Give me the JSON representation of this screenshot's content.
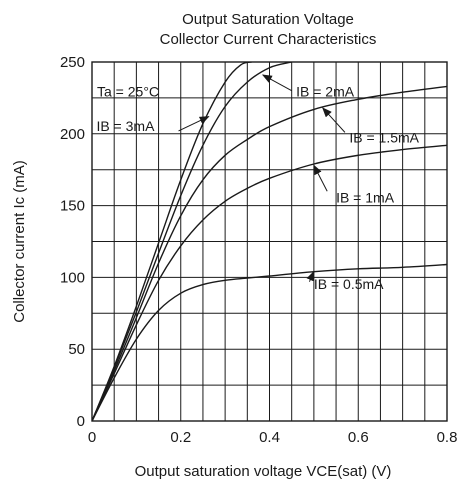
{
  "chart_data": {
    "type": "line",
    "title": [
      "Output Saturation Voltage",
      "Collector Current Characteristics"
    ],
    "xlabel": "Output saturation voltage  VCE(sat) (V)",
    "ylabel": "Collector current  Ic (mA)",
    "xlim": [
      0,
      0.8
    ],
    "ylim": [
      0,
      250
    ],
    "x_ticks": [
      0,
      0.2,
      0.4,
      0.6,
      0.8
    ],
    "x_tick_labels": [
      "0",
      "0.2",
      "0.4",
      "0.6",
      "0.8"
    ],
    "y_ticks": [
      0,
      50,
      100,
      150,
      200,
      250
    ],
    "y_tick_labels": [
      "0",
      "50",
      "100",
      "150",
      "200",
      "250"
    ],
    "grid": true,
    "condition": "Ta = 25°C",
    "series": [
      {
        "name": "IB = 0.5mA",
        "label": "IB = 0.5mA",
        "x": [
          0,
          0.05,
          0.1,
          0.15,
          0.2,
          0.25,
          0.3,
          0.35,
          0.4,
          0.5,
          0.6,
          0.7,
          0.8
        ],
        "y": [
          0,
          30,
          57,
          77,
          89,
          95,
          98,
          99.5,
          101,
          104,
          106,
          107,
          109
        ]
      },
      {
        "name": "IB = 1mA",
        "label": "IB = 1mA",
        "x": [
          0,
          0.05,
          0.1,
          0.15,
          0.2,
          0.25,
          0.3,
          0.35,
          0.4,
          0.5,
          0.6,
          0.7,
          0.8
        ],
        "y": [
          0,
          33,
          67,
          98,
          122,
          140,
          153,
          162,
          169,
          179,
          185,
          189,
          192
        ]
      },
      {
        "name": "IB = 1.5mA",
        "label": "IB = 1.5mA",
        "x": [
          0,
          0.05,
          0.1,
          0.15,
          0.2,
          0.25,
          0.3,
          0.35,
          0.4,
          0.5,
          0.6,
          0.7,
          0.8
        ],
        "y": [
          0,
          35,
          72,
          110,
          143,
          168,
          185,
          196,
          205,
          217,
          224,
          229,
          233
        ]
      },
      {
        "name": "IB = 2mA",
        "label": "IB = 2mA",
        "x": [
          0,
          0.05,
          0.1,
          0.15,
          0.2,
          0.25,
          0.3,
          0.35,
          0.4,
          0.45
        ],
        "y": [
          0,
          37,
          76,
          117,
          157,
          192,
          219,
          236,
          246,
          250
        ]
      },
      {
        "name": "IB = 3mA",
        "label": "IB = 3mA",
        "x": [
          0,
          0.05,
          0.1,
          0.15,
          0.2,
          0.25,
          0.3,
          0.335,
          0.36
        ],
        "y": [
          0,
          38,
          80,
          124,
          168,
          207,
          236,
          248,
          250
        ]
      }
    ]
  }
}
